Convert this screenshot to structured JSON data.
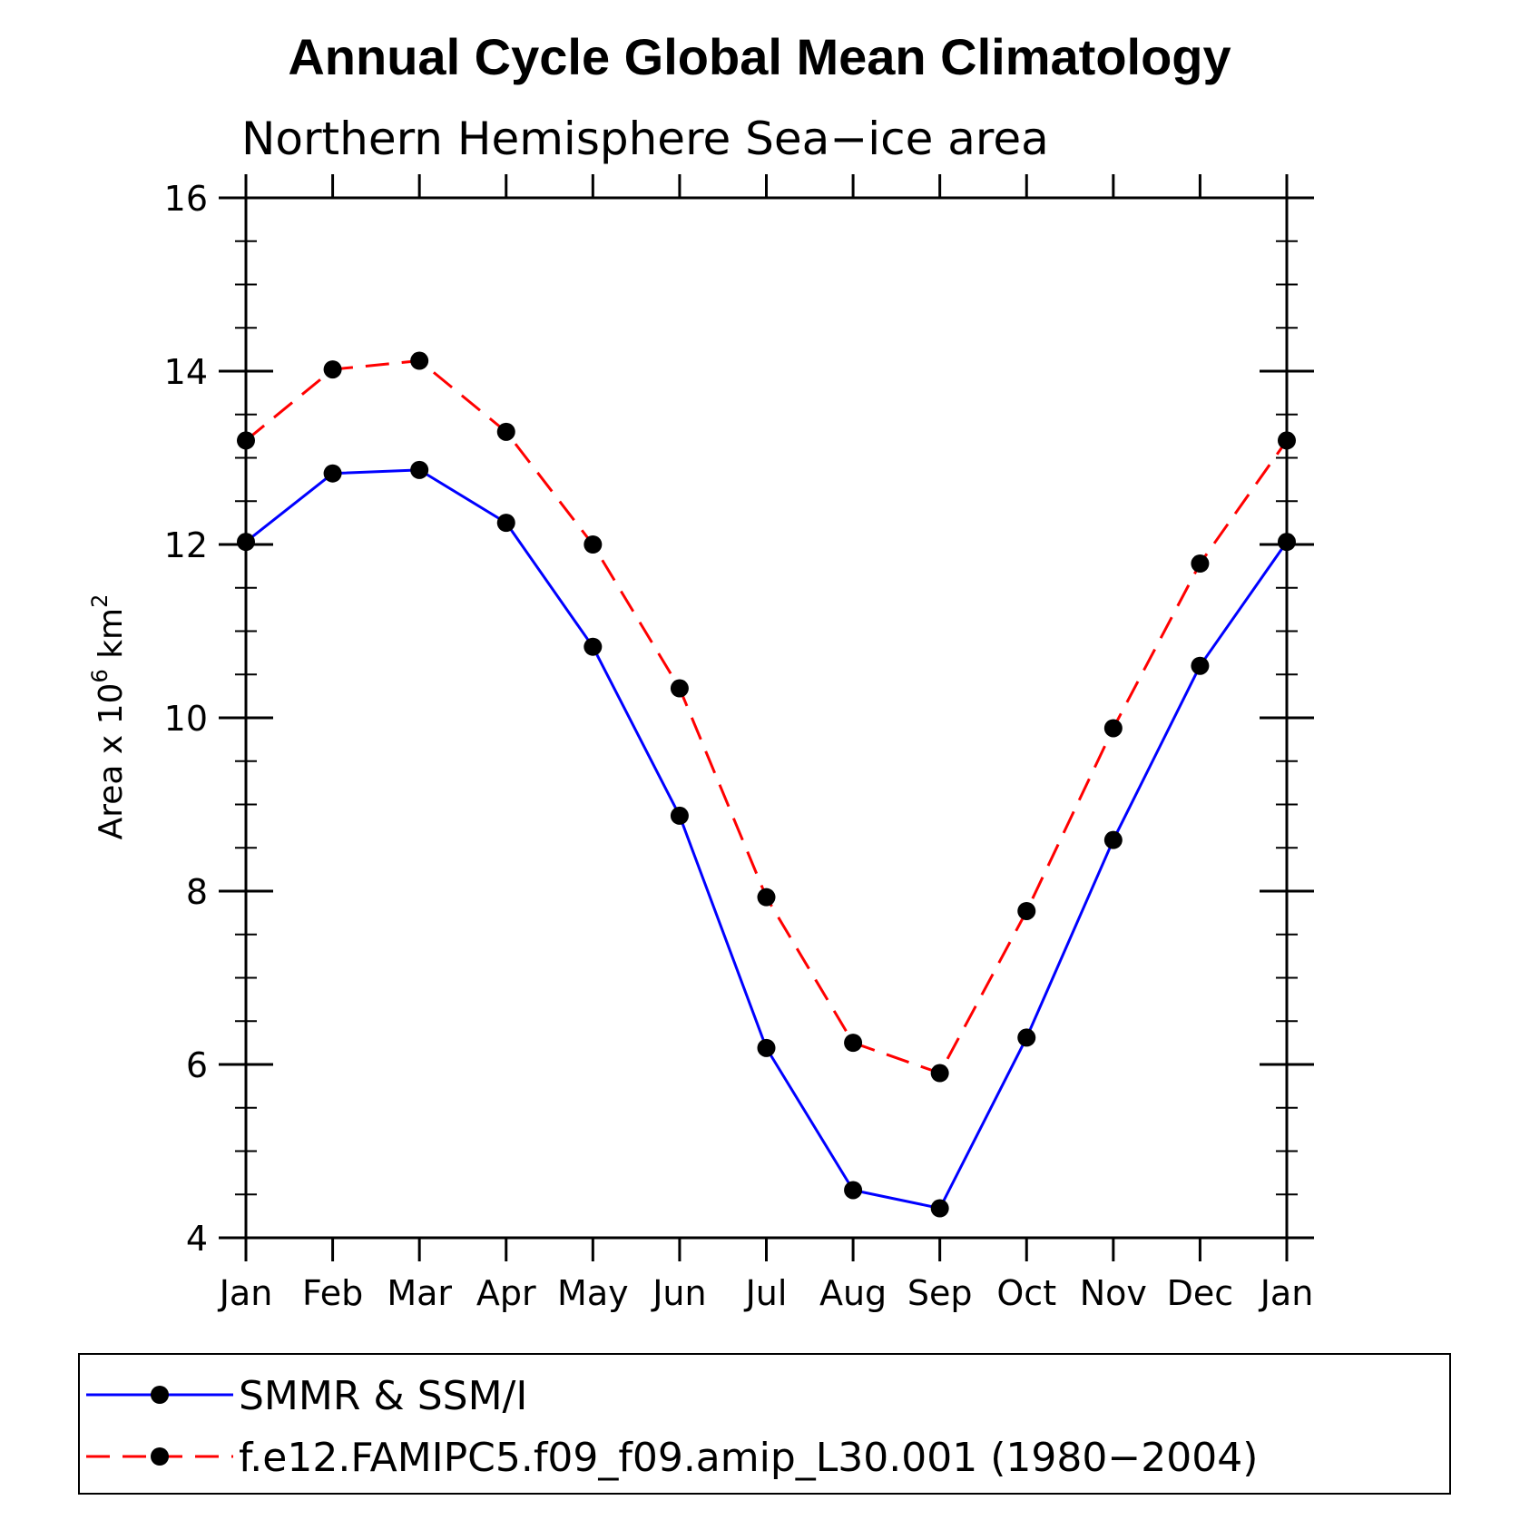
{
  "chart_data": {
    "type": "line",
    "title": "Annual Cycle Global Mean Climatology",
    "subtitle": "Northern Hemisphere Sea−ice area",
    "ylabel": {
      "base": "Area x 10",
      "exp1": "6",
      "unit": " km",
      "exp2": "2"
    },
    "categories": [
      "Jan",
      "Feb",
      "Mar",
      "Apr",
      "May",
      "Jun",
      "Jul",
      "Aug",
      "Sep",
      "Oct",
      "Nov",
      "Dec",
      "Jan"
    ],
    "ylim": [
      4,
      16
    ],
    "yticks": [
      4,
      6,
      8,
      10,
      12,
      14,
      16
    ],
    "yminor_step": 0.5,
    "grid": false,
    "legend_position": "bottom",
    "series": [
      {
        "name": "SMMR & SSM/I",
        "color": "#0000ff",
        "dash": "solid",
        "marker": "filled-circle",
        "values": [
          12.03,
          12.82,
          12.86,
          12.25,
          10.82,
          8.87,
          6.19,
          4.55,
          4.34,
          6.31,
          8.59,
          10.6,
          12.03
        ]
      },
      {
        "name": "f.e12.FAMIPC5.f09_f09.amip_L30.001 (1980−2004)",
        "color": "#ff0000",
        "dash": "dashed",
        "marker": "filled-circle",
        "values": [
          13.2,
          14.02,
          14.12,
          13.3,
          12.0,
          10.34,
          7.93,
          6.25,
          5.9,
          7.77,
          9.88,
          11.78,
          13.2
        ]
      }
    ]
  }
}
